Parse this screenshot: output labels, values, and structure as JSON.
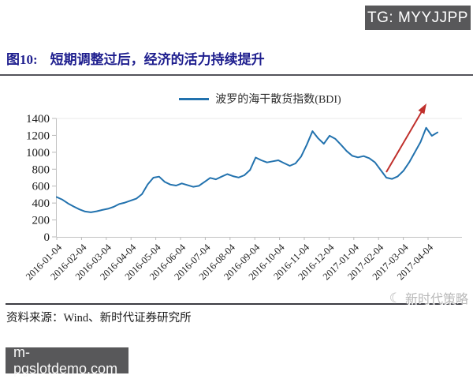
{
  "header": {
    "tg_badge": "TG: MYYJJPP"
  },
  "figure": {
    "label": "图10:",
    "title": "短期调整过后，经济的活力持续提升"
  },
  "chart_data": {
    "type": "line",
    "title": "",
    "xlabel": "",
    "ylabel": "",
    "grid": false,
    "legend_position": "top-center",
    "legend_label": "波罗的海干散货指数(BDI)",
    "ylim": [
      0,
      1400
    ],
    "y_ticks": [
      0,
      200,
      400,
      600,
      800,
      1000,
      1200,
      1400
    ],
    "x_tick_labels": [
      "2016-01-04",
      "2016-02-04",
      "2016-03-04",
      "2016-04-04",
      "2016-05-04",
      "2016-06-04",
      "2016-07-04",
      "2016-08-04",
      "2016-09-04",
      "2016-10-04",
      "2016-11-04",
      "2016-12-04",
      "2017-01-04",
      "2017-02-04",
      "2017-03-04",
      "2017-04-04"
    ],
    "series": [
      {
        "name": "波罗的海干散货指数(BDI)",
        "color": "#2272ae",
        "values": [
          470,
          440,
          395,
          358,
          325,
          300,
          290,
          302,
          318,
          332,
          355,
          388,
          405,
          428,
          452,
          505,
          620,
          700,
          712,
          650,
          618,
          607,
          632,
          612,
          592,
          603,
          650,
          697,
          680,
          712,
          742,
          718,
          702,
          728,
          790,
          938,
          905,
          880,
          893,
          905,
          872,
          840,
          868,
          950,
          1090,
          1250,
          1165,
          1100,
          1196,
          1160,
          1090,
          1015,
          958,
          940,
          955,
          930,
          880,
          790,
          700,
          685,
          715,
          780,
          880,
          1000,
          1120,
          1290,
          1195,
          1235
        ]
      }
    ],
    "annotation_arrow": {
      "meaning": "upward trend annotation",
      "color": "#c0302c",
      "from": {
        "x": 490,
        "y": 218
      },
      "to": {
        "x": 541,
        "y": 131
      }
    }
  },
  "footer": {
    "source": "资料来源：Wind、新时代证券研究所",
    "watermark_icon": "☾",
    "watermark": "新时代策略",
    "site_badge": "m-pgslotdemo.com"
  },
  "colors": {
    "title_navy": "#1e1e8e",
    "series_blue": "#2272ae",
    "arrow_red": "#c0302c",
    "badge_gray": "#58585a",
    "axis_gray": "#c2c2c2",
    "rule_dark": "#3b3b42"
  }
}
